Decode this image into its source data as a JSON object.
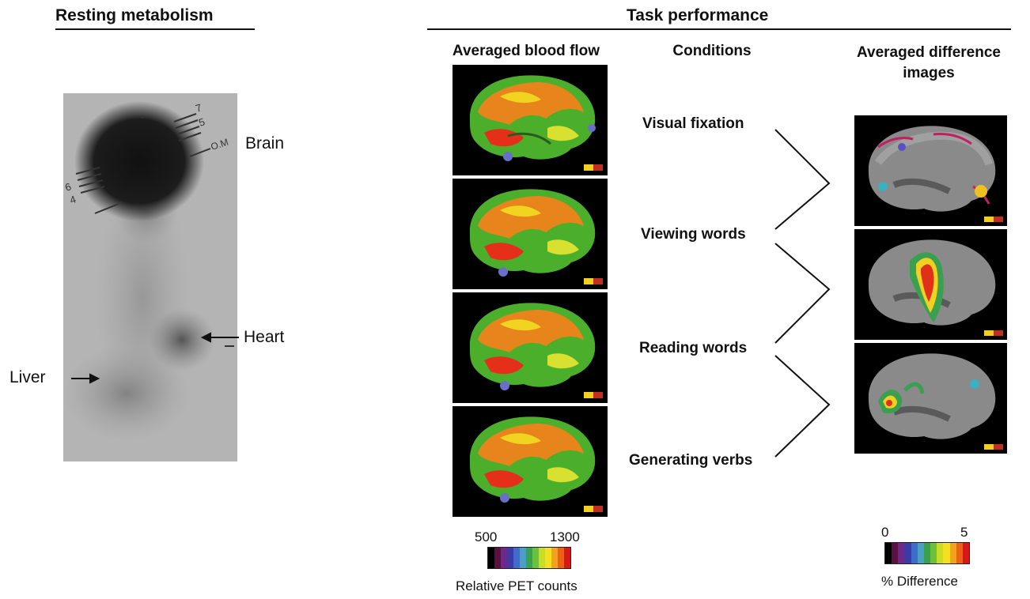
{
  "left": {
    "title": "Resting metabolism",
    "labels": {
      "brain": "Brain",
      "heart": "Heart",
      "liver": "Liver"
    },
    "film_marks": {
      "top": [
        "7",
        "5"
      ],
      "left": [
        "6",
        "4"
      ],
      "om": "O.M"
    }
  },
  "right": {
    "title": "Task performance",
    "columns": {
      "blood_flow": "Averaged blood flow",
      "conditions": "Conditions",
      "difference": "Averaged difference images"
    },
    "conditions": [
      "Visual fixation",
      "Viewing words",
      "Reading words",
      "Generating verbs"
    ],
    "pet_scale": {
      "min": "500",
      "max": "1300",
      "label": "Relative PET counts"
    },
    "diff_scale": {
      "min": "0",
      "max": "5",
      "label": "% Difference"
    }
  },
  "colors": {
    "colorbar": [
      "#000000",
      "#5a1040",
      "#6a2a8a",
      "#3a3aa8",
      "#3f6cc8",
      "#4aa0c0",
      "#3aa050",
      "#6cc03a",
      "#c8dc28",
      "#f4e020",
      "#f4a020",
      "#ec6018",
      "#d81818"
    ]
  }
}
